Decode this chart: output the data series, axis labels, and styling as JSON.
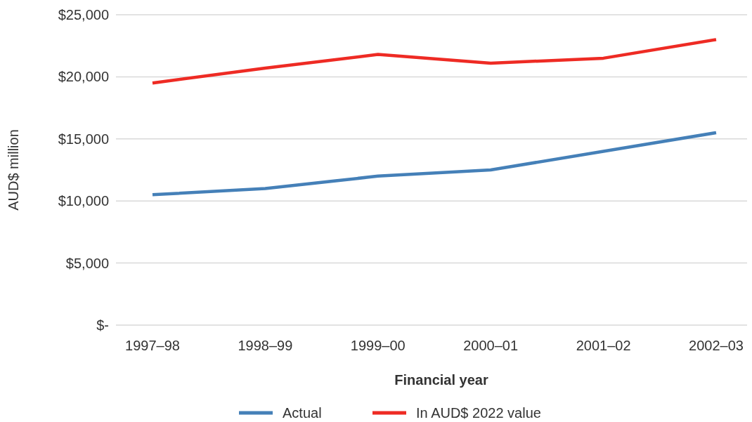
{
  "chart_data": {
    "type": "line",
    "xlabel": "Financial year",
    "ylabel": "AUD$ million",
    "categories": [
      "1997–98",
      "1998–99",
      "1999–00",
      "2000–01",
      "2001–02",
      "2002–03"
    ],
    "series": [
      {
        "name": "Actual",
        "color": "#4580b8",
        "values": [
          10500,
          11000,
          12000,
          12500,
          14000,
          15500
        ]
      },
      {
        "name": "In AUD$ 2022 value",
        "color": "#ee2b24",
        "values": [
          19500,
          20700,
          21800,
          21100,
          21500,
          23000
        ]
      }
    ],
    "ylim": [
      0,
      25000
    ],
    "yticks": [
      {
        "value": 0,
        "label": "$-"
      },
      {
        "value": 5000,
        "label": "$5,000"
      },
      {
        "value": 10000,
        "label": "$10,000"
      },
      {
        "value": 15000,
        "label": "$15,000"
      },
      {
        "value": 20000,
        "label": "$20,000"
      },
      {
        "value": 25000,
        "label": "$25,000"
      }
    ],
    "grid": "y",
    "legend": "bottom",
    "marker": "none",
    "line_style": "solid"
  }
}
